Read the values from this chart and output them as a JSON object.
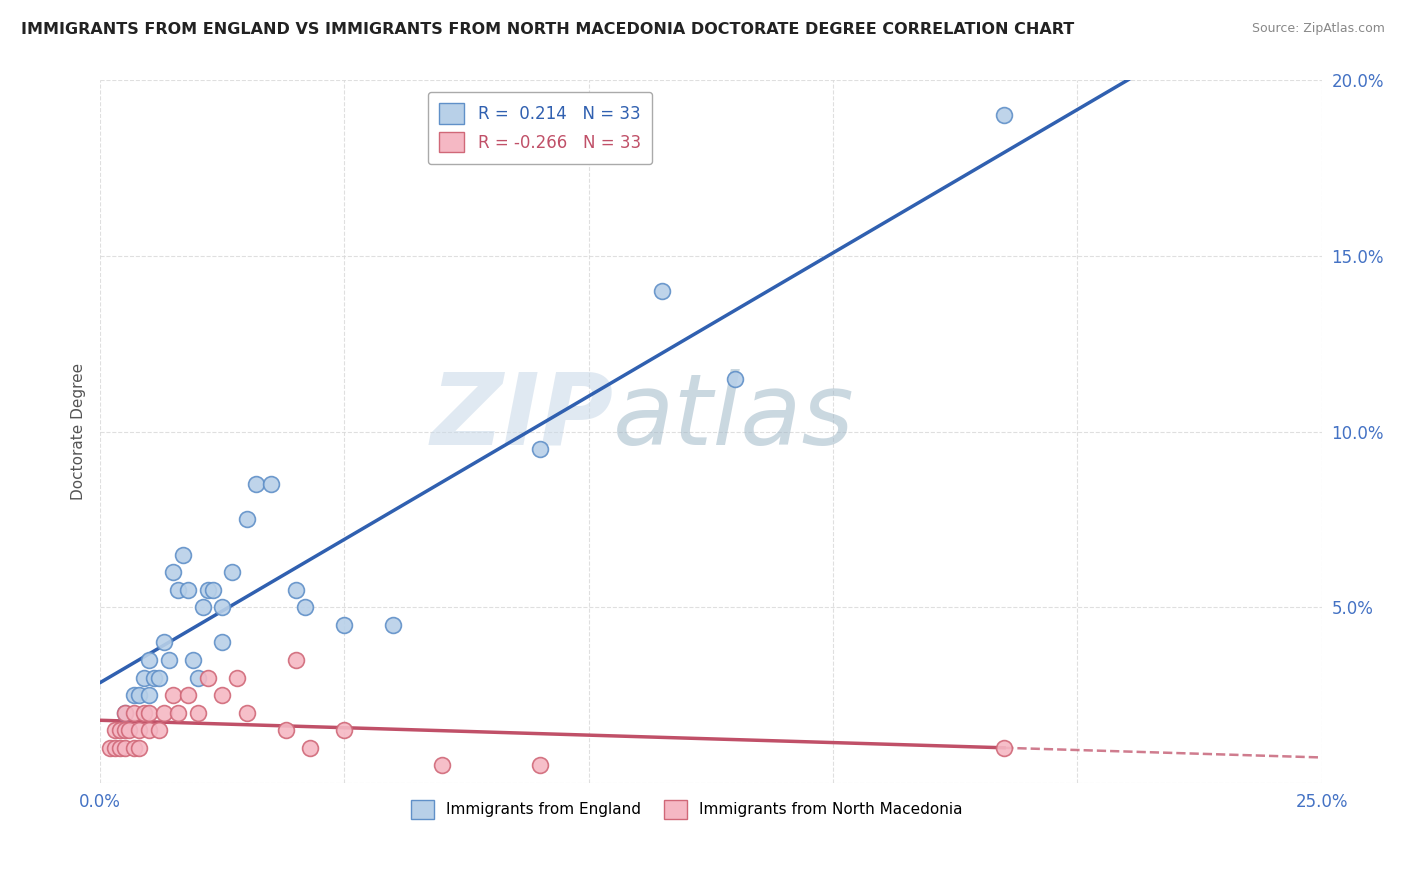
{
  "title": "IMMIGRANTS FROM ENGLAND VS IMMIGRANTS FROM NORTH MACEDONIA DOCTORATE DEGREE CORRELATION CHART",
  "source": "Source: ZipAtlas.com",
  "ylabel": "Doctorate Degree",
  "xlim": [
    0.0,
    0.25
  ],
  "ylim": [
    0.0,
    0.2
  ],
  "xtick_labels": [
    "0.0%",
    "",
    "",
    "",
    "",
    "25.0%"
  ],
  "xtick_vals": [
    0.0,
    0.05,
    0.1,
    0.15,
    0.2,
    0.25
  ],
  "ytick_labels": [
    "",
    "5.0%",
    "10.0%",
    "15.0%",
    "20.0%"
  ],
  "ytick_vals": [
    0.0,
    0.05,
    0.1,
    0.15,
    0.2
  ],
  "r_england": 0.214,
  "n_england": 33,
  "r_macedonia": -0.266,
  "n_macedonia": 33,
  "england_color": "#b8d0e8",
  "macedonia_color": "#f5b8c4",
  "england_edge_color": "#6090c8",
  "macedonia_edge_color": "#d06878",
  "england_line_color": "#3060b0",
  "macedonia_line_color": "#c05068",
  "england_x": [
    0.005,
    0.007,
    0.008,
    0.009,
    0.01,
    0.01,
    0.011,
    0.012,
    0.013,
    0.014,
    0.015,
    0.016,
    0.017,
    0.018,
    0.019,
    0.02,
    0.021,
    0.022,
    0.023,
    0.025,
    0.025,
    0.027,
    0.03,
    0.032,
    0.035,
    0.04,
    0.042,
    0.05,
    0.06,
    0.09,
    0.115,
    0.13,
    0.185
  ],
  "england_y": [
    0.02,
    0.025,
    0.025,
    0.03,
    0.025,
    0.035,
    0.03,
    0.03,
    0.04,
    0.035,
    0.06,
    0.055,
    0.065,
    0.055,
    0.035,
    0.03,
    0.05,
    0.055,
    0.055,
    0.04,
    0.05,
    0.06,
    0.075,
    0.085,
    0.085,
    0.055,
    0.05,
    0.045,
    0.045,
    0.095,
    0.14,
    0.115,
    0.19
  ],
  "macedonia_x": [
    0.002,
    0.003,
    0.003,
    0.004,
    0.004,
    0.005,
    0.005,
    0.005,
    0.006,
    0.007,
    0.007,
    0.008,
    0.008,
    0.009,
    0.01,
    0.01,
    0.012,
    0.013,
    0.015,
    0.016,
    0.018,
    0.02,
    0.022,
    0.025,
    0.028,
    0.03,
    0.038,
    0.04,
    0.043,
    0.05,
    0.07,
    0.09,
    0.185
  ],
  "macedonia_y": [
    0.01,
    0.01,
    0.015,
    0.01,
    0.015,
    0.01,
    0.015,
    0.02,
    0.015,
    0.01,
    0.02,
    0.01,
    0.015,
    0.02,
    0.015,
    0.02,
    0.015,
    0.02,
    0.025,
    0.02,
    0.025,
    0.02,
    0.03,
    0.025,
    0.03,
    0.02,
    0.015,
    0.035,
    0.01,
    0.015,
    0.005,
    0.005,
    0.01
  ],
  "watermark_zip": "ZIP",
  "watermark_atlas": "atlas",
  "background_color": "#ffffff",
  "grid_color": "#d8d8d8"
}
